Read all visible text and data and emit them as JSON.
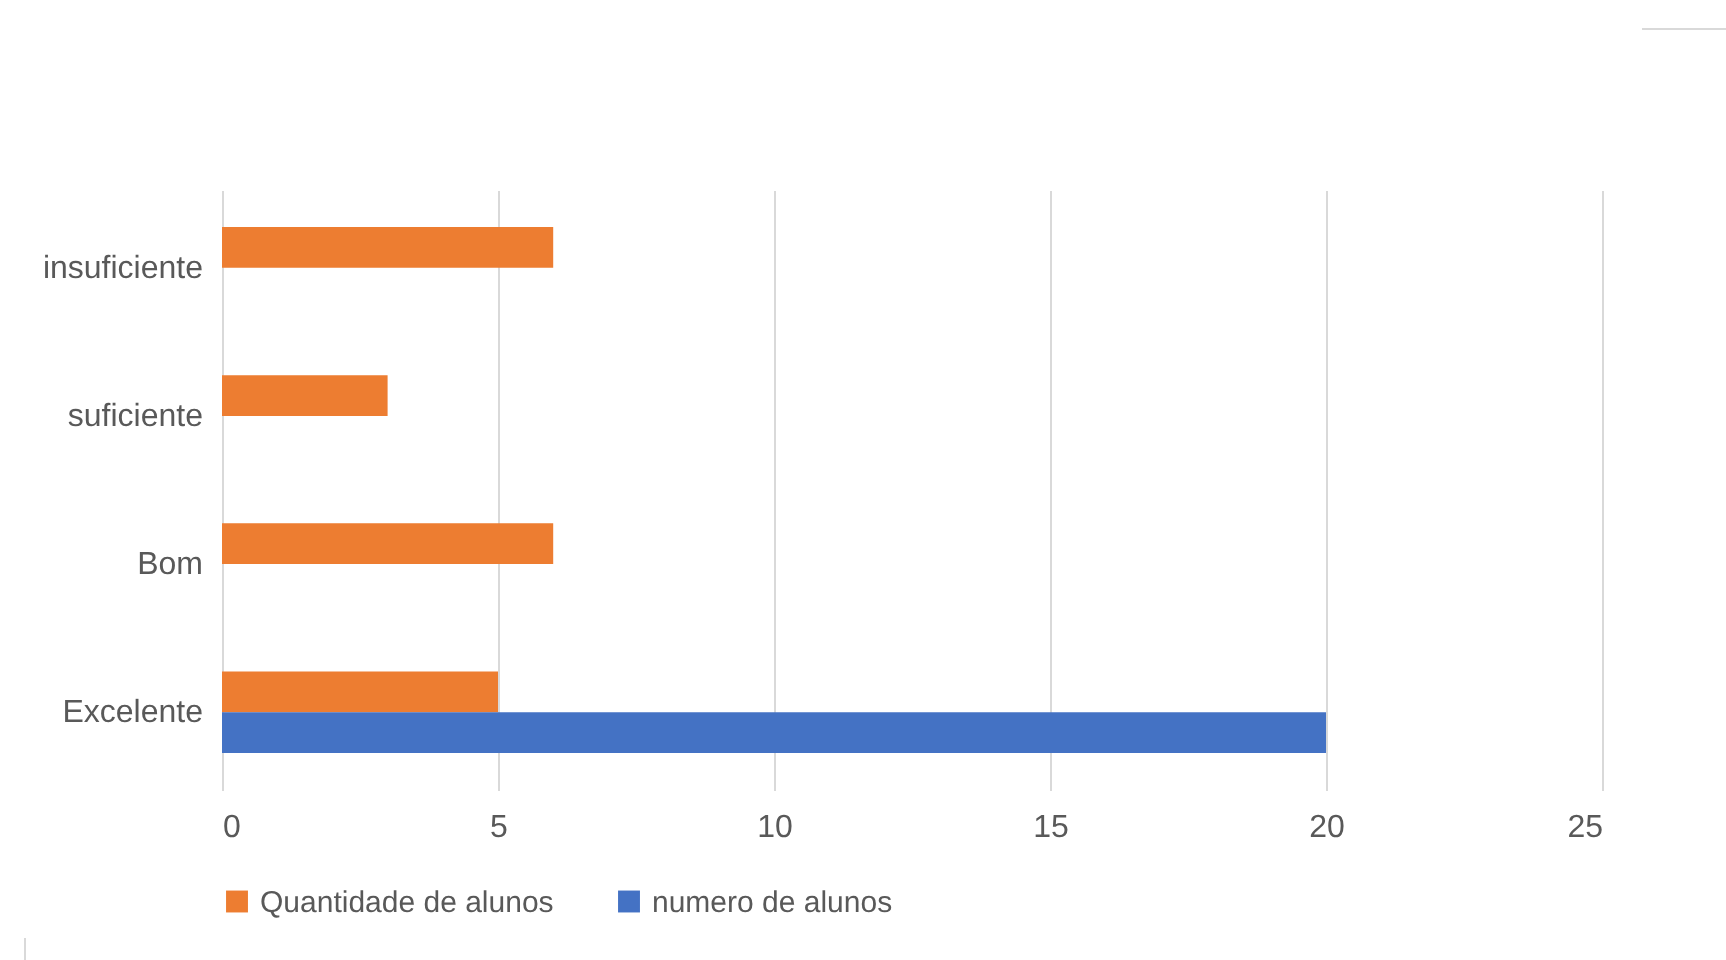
{
  "chart_data": {
    "type": "bar",
    "orientation": "horizontal",
    "categories": [
      "insuficiente",
      "suficiente",
      "Bom",
      "Excelente"
    ],
    "series": [
      {
        "name": "Quantidade de alunos",
        "color": "#ed7d31",
        "values": [
          6,
          3,
          6,
          5
        ]
      },
      {
        "name": "numero de alunos",
        "color": "#4472c4",
        "values": [
          null,
          null,
          null,
          20
        ]
      }
    ],
    "xlim": [
      0,
      25
    ],
    "xticks": [
      0,
      5,
      10,
      15,
      20,
      25
    ],
    "grid": "x",
    "legend": "bottom"
  }
}
